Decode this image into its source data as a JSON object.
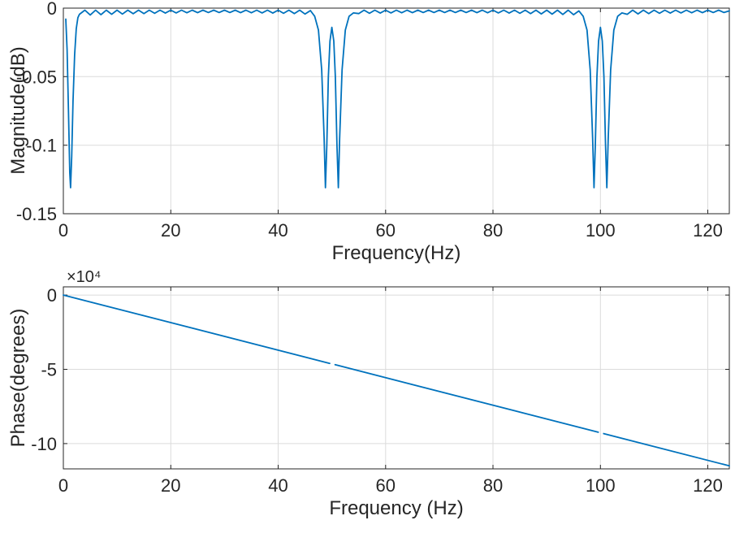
{
  "figure": {
    "kind": "matlab-style filter frequency response, two stacked subplots"
  },
  "colors": {
    "background": "#ffffff",
    "line": "#0072BD",
    "axis": "#262626",
    "grid": "#dbdbdb",
    "text": "#262626"
  },
  "chart_data": [
    {
      "type": "line",
      "title": "",
      "xlabel": "Frequency(Hz)",
      "ylabel": "Magnitude(dB)",
      "xlim": [
        0,
        124
      ],
      "ylim": [
        -0.15,
        0
      ],
      "xtick_values": [
        0,
        20,
        40,
        60,
        80,
        100,
        120
      ],
      "xtick_labels": [
        "0",
        "20",
        "40",
        "60",
        "80",
        "100",
        "120"
      ],
      "ytick_values": [
        0,
        -0.05,
        -0.1,
        -0.15
      ],
      "ytick_labels": [
        "0",
        "-0.05",
        "-0.1",
        "-0.15"
      ],
      "grid": true,
      "legend": null,
      "series": [
        {
          "name": "magnitude",
          "segments": [
            [
              [
                0.45,
                -0.008
              ],
              [
                0.7,
                -0.03
              ],
              [
                0.95,
                -0.075
              ],
              [
                1.2,
                -0.12
              ],
              [
                1.35,
                -0.131
              ],
              [
                1.55,
                -0.108
              ],
              [
                1.8,
                -0.068
              ],
              [
                2.1,
                -0.034
              ],
              [
                2.4,
                -0.015
              ],
              [
                2.7,
                -0.007
              ],
              [
                3,
                -0.0045
              ],
              [
                4,
                -0.0015
              ],
              [
                5,
                -0.005
              ],
              [
                6,
                -0.0015
              ],
              [
                7,
                -0.0048
              ],
              [
                8,
                -0.0015
              ],
              [
                9,
                -0.0045
              ],
              [
                10,
                -0.0015
              ],
              [
                11,
                -0.0043
              ],
              [
                12,
                -0.0015
              ],
              [
                13,
                -0.0041
              ],
              [
                14,
                -0.0015
              ],
              [
                15,
                -0.004
              ],
              [
                16,
                -0.0015
              ],
              [
                17,
                -0.0038
              ],
              [
                18,
                -0.0015
              ],
              [
                19,
                -0.0036
              ],
              [
                20,
                -0.0015
              ],
              [
                21,
                -0.0035
              ],
              [
                22,
                -0.0015
              ],
              [
                23,
                -0.0034
              ],
              [
                24,
                -0.0015
              ],
              [
                25,
                -0.0033
              ],
              [
                26,
                -0.0015
              ],
              [
                27,
                -0.0032
              ],
              [
                28,
                -0.0015
              ],
              [
                29,
                -0.0032
              ],
              [
                30,
                -0.0015
              ],
              [
                31,
                -0.0032
              ],
              [
                32,
                -0.0015
              ],
              [
                33,
                -0.0033
              ],
              [
                34,
                -0.0015
              ],
              [
                35,
                -0.0034
              ],
              [
                36,
                -0.0015
              ],
              [
                37,
                -0.0035
              ],
              [
                38,
                -0.0015
              ],
              [
                39,
                -0.0036
              ],
              [
                40,
                -0.0015
              ],
              [
                41,
                -0.0038
              ],
              [
                42,
                -0.0015
              ],
              [
                43,
                -0.004
              ],
              [
                44,
                -0.0015
              ],
              [
                45,
                -0.0043
              ],
              [
                46,
                -0.0018
              ],
              [
                46.8,
                -0.006
              ],
              [
                47.5,
                -0.016
              ],
              [
                48.1,
                -0.045
              ],
              [
                48.55,
                -0.095
              ],
              [
                48.8,
                -0.131
              ],
              [
                49.05,
                -0.1
              ],
              [
                49.35,
                -0.05
              ],
              [
                49.65,
                -0.024
              ],
              [
                50,
                -0.014
              ],
              [
                50.35,
                -0.024
              ],
              [
                50.65,
                -0.05
              ],
              [
                50.95,
                -0.1
              ],
              [
                51.2,
                -0.131
              ],
              [
                51.45,
                -0.095
              ],
              [
                51.9,
                -0.045
              ],
              [
                52.5,
                -0.016
              ],
              [
                53.2,
                -0.006
              ],
              [
                54,
                -0.0035
              ],
              [
                55,
                -0.004
              ],
              [
                56,
                -0.0015
              ],
              [
                57,
                -0.0038
              ],
              [
                58,
                -0.0015
              ],
              [
                59,
                -0.0036
              ],
              [
                60,
                -0.0015
              ],
              [
                61,
                -0.0035
              ],
              [
                62,
                -0.0015
              ],
              [
                63,
                -0.0034
              ],
              [
                64,
                -0.0015
              ],
              [
                65,
                -0.0033
              ],
              [
                66,
                -0.0015
              ],
              [
                67,
                -0.0032
              ],
              [
                68,
                -0.0015
              ],
              [
                69,
                -0.0032
              ],
              [
                70,
                -0.0015
              ],
              [
                71,
                -0.0032
              ],
              [
                72,
                -0.0015
              ],
              [
                73,
                -0.0032
              ],
              [
                74,
                -0.0015
              ],
              [
                75,
                -0.0032
              ],
              [
                76,
                -0.0015
              ],
              [
                77,
                -0.0033
              ],
              [
                78,
                -0.0015
              ],
              [
                79,
                -0.0034
              ],
              [
                80,
                -0.0015
              ],
              [
                81,
                -0.0035
              ],
              [
                82,
                -0.0015
              ],
              [
                83,
                -0.0036
              ],
              [
                84,
                -0.0015
              ],
              [
                85,
                -0.0038
              ],
              [
                86,
                -0.0015
              ],
              [
                87,
                -0.004
              ],
              [
                88,
                -0.0015
              ],
              [
                89,
                -0.0042
              ],
              [
                90,
                -0.0015
              ],
              [
                91,
                -0.0044
              ],
              [
                92,
                -0.0015
              ],
              [
                93,
                -0.0046
              ],
              [
                94,
                -0.0015
              ],
              [
                95,
                -0.0048
              ],
              [
                96,
                -0.002
              ],
              [
                96.8,
                -0.006
              ],
              [
                97.5,
                -0.016
              ],
              [
                98.1,
                -0.045
              ],
              [
                98.55,
                -0.095
              ],
              [
                98.8,
                -0.131
              ],
              [
                99.05,
                -0.1
              ],
              [
                99.35,
                -0.05
              ],
              [
                99.65,
                -0.024
              ],
              [
                100,
                -0.014
              ],
              [
                100.35,
                -0.024
              ],
              [
                100.65,
                -0.05
              ],
              [
                100.95,
                -0.1
              ],
              [
                101.2,
                -0.131
              ],
              [
                101.45,
                -0.095
              ],
              [
                101.9,
                -0.045
              ],
              [
                102.5,
                -0.016
              ],
              [
                103.2,
                -0.006
              ],
              [
                104,
                -0.0035
              ],
              [
                105,
                -0.0045
              ],
              [
                106,
                -0.0015
              ],
              [
                107,
                -0.0042
              ],
              [
                108,
                -0.0015
              ],
              [
                109,
                -0.004
              ],
              [
                110,
                -0.0015
              ],
              [
                111,
                -0.0038
              ],
              [
                112,
                -0.0015
              ],
              [
                113,
                -0.0036
              ],
              [
                114,
                -0.0015
              ],
              [
                115,
                -0.0035
              ],
              [
                116,
                -0.0015
              ],
              [
                117,
                -0.0034
              ],
              [
                118,
                -0.0015
              ],
              [
                119,
                -0.0033
              ],
              [
                120,
                -0.0015
              ],
              [
                121,
                -0.0032
              ],
              [
                122,
                -0.0015
              ],
              [
                123,
                -0.0032
              ],
              [
                124,
                -0.002
              ]
            ]
          ]
        }
      ]
    },
    {
      "type": "line",
      "title": "",
      "xlabel": "Frequency (Hz)",
      "ylabel": "Phase(degrees)",
      "y_multiplier_label": "×10⁴",
      "xlim": [
        0,
        124
      ],
      "ylim": [
        -117000,
        5500
      ],
      "xtick_values": [
        0,
        20,
        40,
        60,
        80,
        100,
        120
      ],
      "xtick_labels": [
        "0",
        "20",
        "40",
        "60",
        "80",
        "100",
        "120"
      ],
      "ytick_values": [
        0,
        -50000,
        -100000
      ],
      "ytick_labels": [
        "0",
        "-5",
        "-10"
      ],
      "grid": true,
      "legend": null,
      "series": [
        {
          "name": "phase",
          "segments": [
            [
              [
                0,
                0
              ],
              [
                49.6,
                -45989
              ]
            ],
            [
              [
                50.6,
                -46916
              ],
              [
                99.6,
                -92349
              ]
            ],
            [
              [
                100.6,
                -93276
              ],
              [
                124,
                -114973
              ]
            ]
          ]
        }
      ]
    }
  ]
}
